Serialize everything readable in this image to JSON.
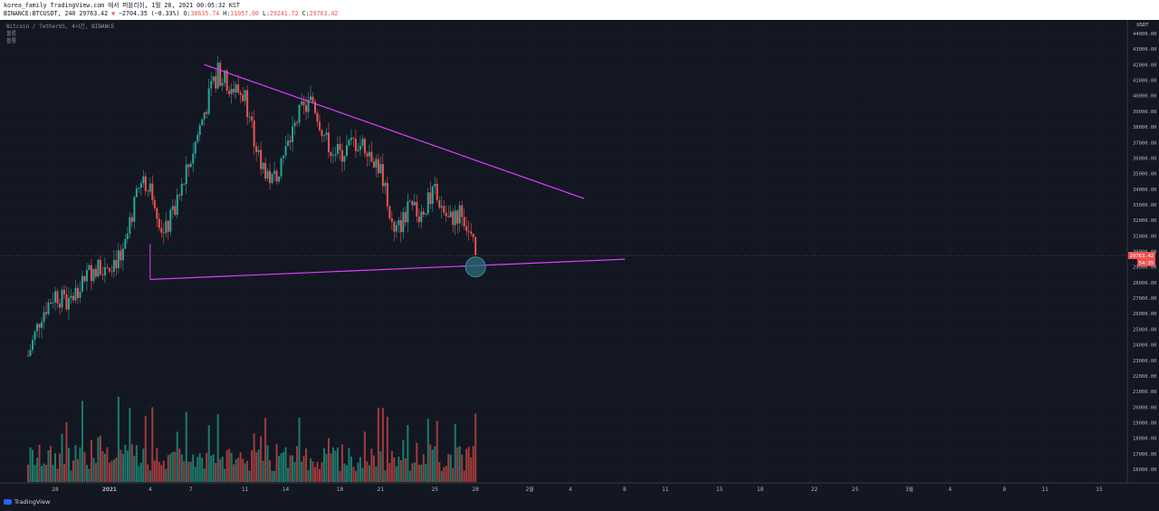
{
  "header": {
    "line1": "korea_family TradingView.com 에서 퍼블리쉬, 1월 28, 2021 00:05:32 KST",
    "symbol_info": "BINANCE:BTCUSDT, 240 29763.42",
    "change_arrow": "▼",
    "change": "−2704.35 (−8.33%)",
    "o_label": "O:",
    "o_value": "30635.74",
    "h_label": "H:",
    "h_value": "31057.00",
    "l_label": "L:",
    "l_value": "29241.72",
    "c_label": "C:",
    "c_value": "29763.42"
  },
  "legend": {
    "title": "Bitcoin / TetherUS, 4시간, BINANCE",
    "vol1": "볼륨",
    "vol2": "볼륨"
  },
  "axis": {
    "currency": "USDT",
    "price_badge": "29763.42",
    "countdown_badge": "54:35"
  },
  "branding": {
    "logo_text": "TradingView"
  },
  "colors": {
    "up": "#26a69a",
    "down": "#ef5350",
    "trendline": "#e040fb",
    "bg": "#131722",
    "grid": "#1c2030",
    "vol_up": "#1d7a6c",
    "vol_down": "#a23b3b"
  },
  "chart_data": {
    "type": "candlestick",
    "y_axis_ticks": [
      16000,
      17000,
      18000,
      19000,
      20000,
      21000,
      22000,
      23000,
      24000,
      25000,
      26000,
      27000,
      28000,
      29000,
      30000,
      31000,
      32000,
      33000,
      34000,
      35000,
      36000,
      37000,
      38000,
      39000,
      40000,
      41000,
      42000,
      43000,
      44000
    ],
    "ylim": [
      15000,
      45000
    ],
    "x_ticks": [
      "28",
      "2021",
      "4",
      "7",
      "11",
      "14",
      "18",
      "21",
      "25",
      "28",
      "2월",
      "4",
      "8",
      "11",
      "15",
      "18",
      "22",
      "25",
      "3월",
      "4",
      "8",
      "11",
      "15"
    ],
    "trendlines": [
      {
        "name": "upper",
        "points": [
          [
            "2021-01-08",
            42000
          ],
          [
            "2021-02-05",
            33400
          ]
        ]
      },
      {
        "name": "lower",
        "points": [
          [
            "2021-01-04",
            28200
          ],
          [
            "2021-02-08",
            29500
          ]
        ]
      }
    ],
    "price_path": [
      [
        "2020-12-26",
        23300
      ],
      [
        "2020-12-27",
        26000
      ],
      [
        "2020-12-28",
        27300
      ],
      [
        "2020-12-29",
        26500
      ],
      [
        "2020-12-30",
        28300
      ],
      [
        "2020-12-31",
        29000
      ],
      [
        "2021-01-01",
        29300
      ],
      [
        "2021-01-02",
        29600
      ],
      [
        "2021-01-03",
        34000
      ],
      [
        "2021-01-04",
        34500
      ],
      [
        "2021-01-05",
        31000
      ],
      [
        "2021-01-06",
        33000
      ],
      [
        "2021-01-07",
        36000
      ],
      [
        "2021-01-08",
        39000
      ],
      [
        "2021-01-09",
        41500
      ],
      [
        "2021-01-10",
        40500
      ],
      [
        "2021-01-11",
        40000
      ],
      [
        "2021-01-12",
        36000
      ],
      [
        "2021-01-13",
        34500
      ],
      [
        "2021-01-14",
        36500
      ],
      [
        "2021-01-15",
        38800
      ],
      [
        "2021-01-16",
        39700
      ],
      [
        "2021-01-17",
        37000
      ],
      [
        "2021-01-18",
        36200
      ],
      [
        "2021-01-19",
        37000
      ],
      [
        "2021-01-20",
        36800
      ],
      [
        "2021-01-21",
        35200
      ],
      [
        "2021-01-22",
        31000
      ],
      [
        "2021-01-23",
        32600
      ],
      [
        "2021-01-24",
        32500
      ],
      [
        "2021-01-25",
        33800
      ],
      [
        "2021-01-26",
        32000
      ],
      [
        "2021-01-27",
        32600
      ],
      [
        "2021-01-28",
        29763.42
      ]
    ],
    "volume_range": [
      0,
      1
    ]
  }
}
